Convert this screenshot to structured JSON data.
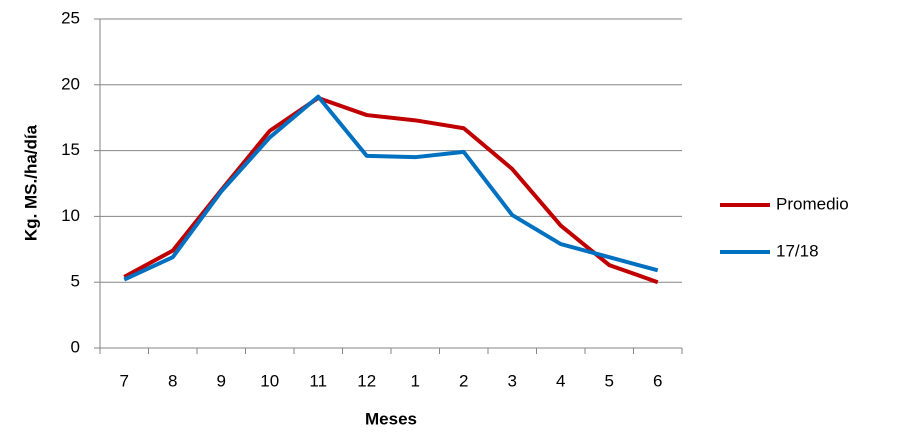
{
  "chart_data": {
    "type": "line",
    "x_label": "Meses",
    "y_label": "Kg. MS./ha/día",
    "categories": [
      "7",
      "8",
      "9",
      "10",
      "11",
      "12",
      "1",
      "2",
      "3",
      "4",
      "5",
      "6"
    ],
    "series": [
      {
        "name": "Promedio",
        "color": "#c00000",
        "values": [
          5.4,
          7.4,
          12.0,
          16.5,
          19.0,
          17.7,
          17.3,
          16.7,
          13.6,
          9.3,
          6.3,
          5.0
        ]
      },
      {
        "name": "17/18",
        "color": "#0070c0",
        "values": [
          5.2,
          6.9,
          11.9,
          16.0,
          19.1,
          14.6,
          14.5,
          14.9,
          10.1,
          7.9,
          6.9,
          5.9
        ]
      }
    ],
    "ylim": [
      0,
      25
    ],
    "yticks": [
      0,
      5,
      10,
      15,
      20,
      25
    ],
    "grid": true,
    "legend": "right"
  }
}
